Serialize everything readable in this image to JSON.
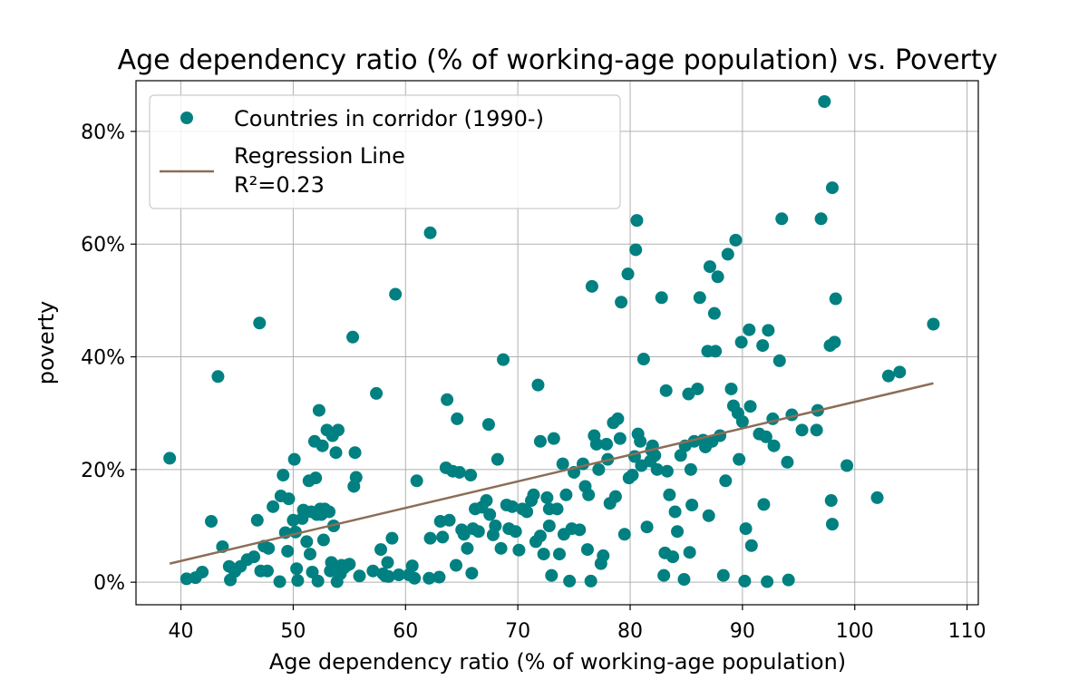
{
  "chart_data": {
    "type": "scatter",
    "title": "Age dependency ratio (% of working-age population) vs. Poverty",
    "xlabel": "Age dependency ratio (% of working-age population)",
    "ylabel": "poverty",
    "xlim": [
      36,
      111
    ],
    "ylim": [
      -0.04,
      0.89
    ],
    "x_ticks": [
      40,
      50,
      60,
      70,
      80,
      90,
      100,
      110
    ],
    "x_tick_labels": [
      "40",
      "50",
      "60",
      "70",
      "80",
      "90",
      "100",
      "110"
    ],
    "y_ticks": [
      0,
      0.2,
      0.4,
      0.6,
      0.8
    ],
    "y_tick_labels": [
      "0%",
      "20%",
      "40%",
      "60%",
      "80%"
    ],
    "grid": true,
    "legend_position": "top-left",
    "point_color": "#008080",
    "line_color": "#8c6d57",
    "series": [
      {
        "name": "Countries in corridor (1990-)",
        "kind": "scatter",
        "points": [
          [
            39.0,
            0.22
          ],
          [
            40.5,
            0.006
          ],
          [
            41.3,
            0.008
          ],
          [
            41.9,
            0.018
          ],
          [
            42.7,
            0.108
          ],
          [
            43.3,
            0.365
          ],
          [
            43.7,
            0.063
          ],
          [
            44.3,
            0.028
          ],
          [
            44.4,
            0.004
          ],
          [
            44.8,
            0.019
          ],
          [
            45.3,
            0.028
          ],
          [
            45.9,
            0.04
          ],
          [
            46.5,
            0.045
          ],
          [
            46.8,
            0.11
          ],
          [
            47.0,
            0.46
          ],
          [
            47.1,
            0.02
          ],
          [
            47.4,
            0.064
          ],
          [
            47.7,
            0.02
          ],
          [
            47.8,
            0.06
          ],
          [
            48.2,
            0.134
          ],
          [
            48.8,
            0.001
          ],
          [
            48.9,
            0.153
          ],
          [
            49.1,
            0.19
          ],
          [
            49.3,
            0.088
          ],
          [
            49.6,
            0.148
          ],
          [
            49.5,
            0.055
          ],
          [
            50.1,
            0.218
          ],
          [
            50.0,
            0.11
          ],
          [
            50.2,
            0.089
          ],
          [
            50.3,
            0.024
          ],
          [
            50.4,
            0.003
          ],
          [
            50.8,
            0.113
          ],
          [
            50.9,
            0.128
          ],
          [
            51.2,
            0.072
          ],
          [
            51.4,
            0.18
          ],
          [
            51.5,
            0.05
          ],
          [
            51.6,
            0.125
          ],
          [
            51.7,
            0.018
          ],
          [
            51.9,
            0.25
          ],
          [
            52.0,
            0.185
          ],
          [
            52.1,
            0.12
          ],
          [
            52.2,
            0.002
          ],
          [
            52.3,
            0.305
          ],
          [
            52.4,
            0.13
          ],
          [
            52.5,
            0.12
          ],
          [
            52.6,
            0.242
          ],
          [
            52.7,
            0.075
          ],
          [
            52.8,
            0.13
          ],
          [
            53.0,
            0.27
          ],
          [
            53.2,
            0.125
          ],
          [
            53.3,
            0.02
          ],
          [
            53.4,
            0.035
          ],
          [
            53.5,
            0.26
          ],
          [
            53.6,
            0.1
          ],
          [
            53.8,
            0.23
          ],
          [
            53.9,
            0.001
          ],
          [
            54.0,
            0.27
          ],
          [
            54.2,
            0.015
          ],
          [
            54.3,
            0.03
          ],
          [
            54.5,
            0.025
          ],
          [
            54.8,
            0.03
          ],
          [
            55.0,
            0.032
          ],
          [
            55.3,
            0.435
          ],
          [
            55.4,
            0.17
          ],
          [
            55.5,
            0.23
          ],
          [
            55.6,
            0.186
          ],
          [
            55.9,
            0.011
          ],
          [
            57.1,
            0.02
          ],
          [
            57.4,
            0.335
          ],
          [
            57.8,
            0.058
          ],
          [
            58.0,
            0.015
          ],
          [
            58.2,
            0.011
          ],
          [
            58.4,
            0.035
          ],
          [
            58.5,
            0.01
          ],
          [
            58.8,
            0.078
          ],
          [
            59.1,
            0.511
          ],
          [
            59.4,
            0.013
          ],
          [
            60.3,
            0.013
          ],
          [
            60.6,
            0.029
          ],
          [
            60.8,
            0.007
          ],
          [
            61.0,
            0.18
          ],
          [
            62.1,
            0.007
          ],
          [
            62.2,
            0.078
          ],
          [
            62.2,
            0.62
          ],
          [
            63.0,
            0.009
          ],
          [
            63.1,
            0.108
          ],
          [
            63.3,
            0.08
          ],
          [
            63.6,
            0.203
          ],
          [
            63.7,
            0.324
          ],
          [
            63.9,
            0.11
          ],
          [
            64.2,
            0.197
          ],
          [
            64.5,
            0.03
          ],
          [
            64.6,
            0.29
          ],
          [
            64.8,
            0.195
          ],
          [
            65.0,
            0.093
          ],
          [
            65.2,
            0.085
          ],
          [
            65.5,
            0.06
          ],
          [
            65.8,
            0.19
          ],
          [
            65.9,
            0.016
          ],
          [
            66.0,
            0.095
          ],
          [
            66.2,
            0.13
          ],
          [
            66.5,
            0.09
          ],
          [
            66.8,
            0.133
          ],
          [
            67.2,
            0.145
          ],
          [
            67.4,
            0.28
          ],
          [
            67.5,
            0.12
          ],
          [
            67.8,
            0.084
          ],
          [
            68.0,
            0.1
          ],
          [
            68.2,
            0.218
          ],
          [
            68.5,
            0.06
          ],
          [
            68.7,
            0.395
          ],
          [
            69.0,
            0.137
          ],
          [
            69.2,
            0.095
          ],
          [
            69.5,
            0.134
          ],
          [
            69.8,
            0.09
          ],
          [
            70.1,
            0.057
          ],
          [
            70.4,
            0.13
          ],
          [
            70.8,
            0.125
          ],
          [
            71.2,
            0.145
          ],
          [
            71.4,
            0.155
          ],
          [
            71.6,
            0.072
          ],
          [
            71.8,
            0.35
          ],
          [
            72.0,
            0.082
          ],
          [
            72.0,
            0.25
          ],
          [
            72.3,
            0.05
          ],
          [
            72.6,
            0.15
          ],
          [
            72.8,
            0.1
          ],
          [
            72.8,
            0.13
          ],
          [
            73.0,
            0.012
          ],
          [
            73.2,
            0.255
          ],
          [
            73.5,
            0.13
          ],
          [
            73.7,
            0.05
          ],
          [
            74.0,
            0.21
          ],
          [
            74.1,
            0.085
          ],
          [
            74.3,
            0.155
          ],
          [
            74.6,
            0.002
          ],
          [
            74.8,
            0.095
          ],
          [
            75.0,
            0.195
          ],
          [
            75.5,
            0.093
          ],
          [
            75.8,
            0.21
          ],
          [
            76.0,
            0.17
          ],
          [
            76.2,
            0.058
          ],
          [
            76.3,
            0.155
          ],
          [
            76.5,
            0.002
          ],
          [
            76.6,
            0.525
          ],
          [
            76.8,
            0.26
          ],
          [
            77.0,
            0.245
          ],
          [
            77.2,
            0.2
          ],
          [
            77.4,
            0.033
          ],
          [
            77.6,
            0.047
          ],
          [
            77.9,
            0.245
          ],
          [
            78.0,
            0.218
          ],
          [
            78.2,
            0.14
          ],
          [
            78.5,
            0.283
          ],
          [
            78.7,
            0.152
          ],
          [
            78.9,
            0.29
          ],
          [
            79.1,
            0.255
          ],
          [
            79.2,
            0.497
          ],
          [
            79.5,
            0.085
          ],
          [
            79.8,
            0.547
          ],
          [
            79.9,
            0.185
          ],
          [
            80.2,
            0.19
          ],
          [
            80.4,
            0.223
          ],
          [
            80.5,
            0.59
          ],
          [
            80.6,
            0.642
          ],
          [
            80.7,
            0.263
          ],
          [
            80.9,
            0.25
          ],
          [
            81.0,
            0.207
          ],
          [
            81.2,
            0.396
          ],
          [
            81.5,
            0.098
          ],
          [
            81.8,
            0.215
          ],
          [
            81.9,
            0.234
          ],
          [
            82.0,
            0.242
          ],
          [
            82.2,
            0.225
          ],
          [
            82.4,
            0.2
          ],
          [
            82.8,
            0.505
          ],
          [
            83.0,
            0.012
          ],
          [
            83.1,
            0.052
          ],
          [
            83.2,
            0.34
          ],
          [
            83.3,
            0.197
          ],
          [
            83.5,
            0.155
          ],
          [
            83.8,
            0.045
          ],
          [
            84.0,
            0.125
          ],
          [
            84.2,
            0.09
          ],
          [
            84.5,
            0.225
          ],
          [
            84.8,
            0.005
          ],
          [
            84.9,
            0.242
          ],
          [
            85.2,
            0.334
          ],
          [
            85.3,
            0.053
          ],
          [
            85.4,
            0.2
          ],
          [
            85.5,
            0.137
          ],
          [
            85.7,
            0.25
          ],
          [
            86.0,
            0.343
          ],
          [
            86.2,
            0.505
          ],
          [
            86.5,
            0.252
          ],
          [
            86.7,
            0.24
          ],
          [
            86.9,
            0.41
          ],
          [
            87.0,
            0.118
          ],
          [
            87.1,
            0.56
          ],
          [
            87.3,
            0.25
          ],
          [
            87.5,
            0.477
          ],
          [
            87.6,
            0.41
          ],
          [
            87.8,
            0.542
          ],
          [
            88.0,
            0.26
          ],
          [
            88.3,
            0.012
          ],
          [
            88.5,
            0.18
          ],
          [
            88.7,
            0.582
          ],
          [
            89.0,
            0.343
          ],
          [
            89.2,
            0.313
          ],
          [
            89.4,
            0.607
          ],
          [
            89.6,
            0.3
          ],
          [
            89.7,
            0.218
          ],
          [
            89.9,
            0.426
          ],
          [
            90.0,
            0.285
          ],
          [
            90.2,
            0.002
          ],
          [
            90.3,
            0.095
          ],
          [
            90.6,
            0.448
          ],
          [
            90.7,
            0.312
          ],
          [
            90.8,
            0.065
          ],
          [
            91.5,
            0.263
          ],
          [
            91.8,
            0.42
          ],
          [
            91.9,
            0.138
          ],
          [
            92.1,
            0.258
          ],
          [
            92.2,
            0.001
          ],
          [
            92.3,
            0.447
          ],
          [
            92.7,
            0.29
          ],
          [
            92.8,
            0.242
          ],
          [
            93.3,
            0.393
          ],
          [
            93.5,
            0.645
          ],
          [
            94.0,
            0.213
          ],
          [
            94.1,
            0.004
          ],
          [
            94.4,
            0.297
          ],
          [
            95.3,
            0.27
          ],
          [
            96.6,
            0.27
          ],
          [
            96.7,
            0.305
          ],
          [
            97.0,
            0.645
          ],
          [
            97.3,
            0.853
          ],
          [
            97.8,
            0.42
          ],
          [
            97.9,
            0.145
          ],
          [
            98.0,
            0.7
          ],
          [
            98.0,
            0.103
          ],
          [
            98.2,
            0.426
          ],
          [
            98.3,
            0.503
          ],
          [
            99.3,
            0.207
          ],
          [
            102.0,
            0.15
          ],
          [
            103.0,
            0.366
          ],
          [
            104.0,
            0.373
          ],
          [
            107.0,
            0.458
          ]
        ]
      },
      {
        "name": "Regression Line\nR²=0.23",
        "kind": "line",
        "points": [
          [
            39.0,
            0.033
          ],
          [
            107.0,
            0.353
          ]
        ]
      }
    ]
  }
}
